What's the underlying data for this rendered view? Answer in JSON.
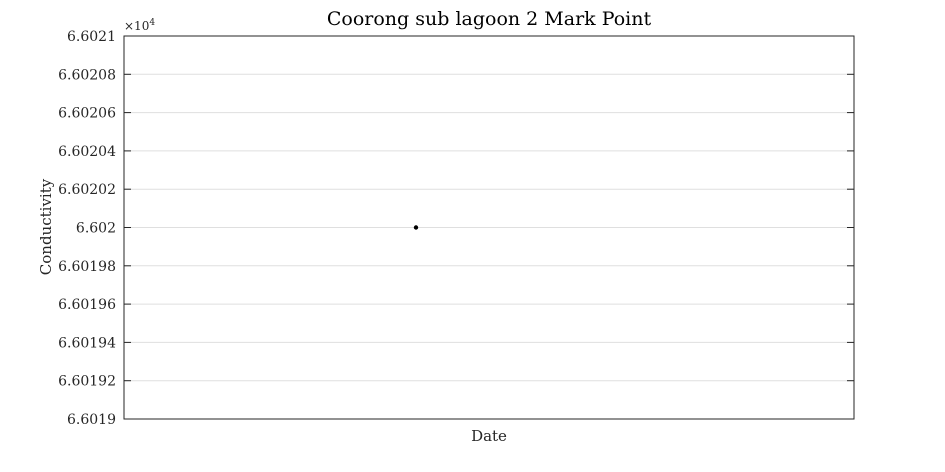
{
  "chart_data": {
    "type": "scatter",
    "title": "Coorong sub lagoon 2 Mark Point",
    "xlabel": "Date",
    "ylabel": "Conductivity",
    "y_exponent_label": "×10",
    "y_exponent_power": "4",
    "ylim": [
      6.6019,
      6.6021
    ],
    "yticks": [
      6.6019,
      6.60192,
      6.60194,
      6.60196,
      6.60198,
      6.602,
      6.60202,
      6.60204,
      6.60206,
      6.60208,
      6.6021
    ],
    "ytick_labels": [
      "6.6019",
      "6.60192",
      "6.60194",
      "6.60196",
      "6.60198",
      "6.602",
      "6.60202",
      "6.60204",
      "6.60206",
      "6.60208",
      "6.6021"
    ],
    "grid": "horizontal",
    "points": [
      {
        "x_position": "middle",
        "y": 6.602
      }
    ],
    "colors": {
      "marker": "#000000",
      "grid": "#dfdfdf",
      "axes": "#262626"
    }
  }
}
